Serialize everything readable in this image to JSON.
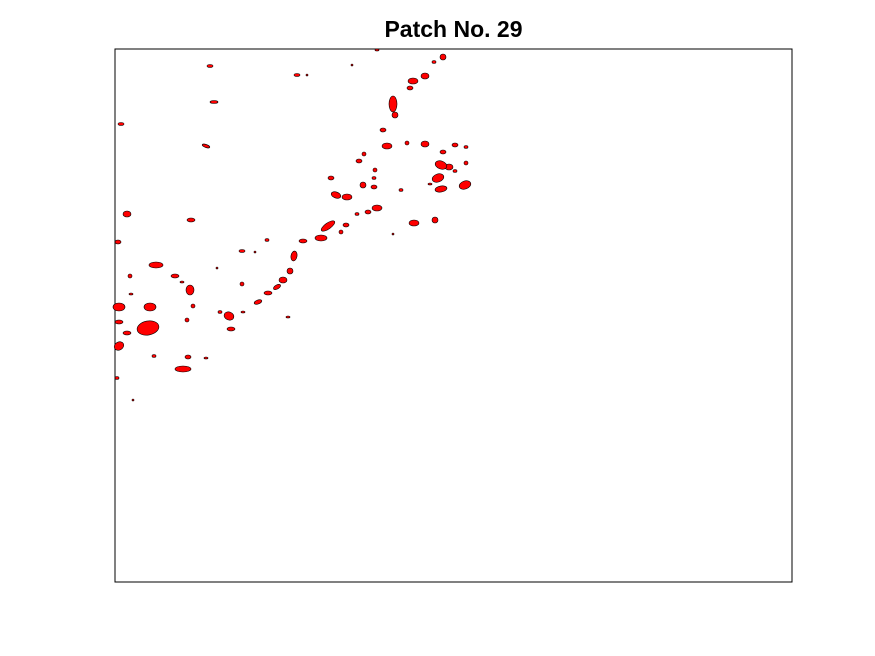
{
  "figure": {
    "title": "Patch No. 29"
  },
  "colors": {
    "background": "#ffffff",
    "axes_frame": "#000000",
    "patch_fill": "#ff0000",
    "patch_edge": "#000000"
  },
  "axes": {
    "ticks_visible": false,
    "grid": false
  }
}
